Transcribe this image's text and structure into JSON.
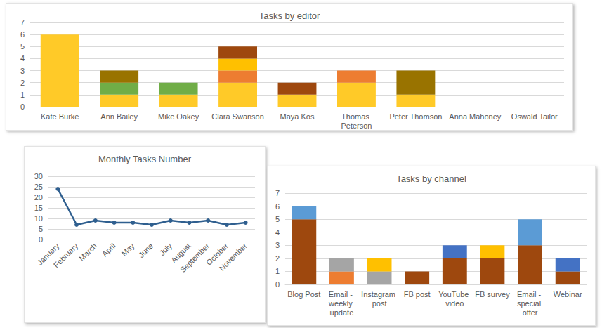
{
  "chart_data": [
    {
      "type": "bar",
      "title": "Tasks by editor",
      "categories": [
        "Kate Burke",
        "Ann Bailey",
        "Mike Oakey",
        "Clara Swanson",
        "Maya Kos",
        "Thomas Peterson",
        "Peter Thomson",
        "Anna Mahoney",
        "Oswald Tailor"
      ],
      "series": [
        {
          "color": "#FFCA28",
          "values": [
            6,
            1,
            1,
            2,
            1,
            2,
            1,
            0,
            0
          ]
        },
        {
          "color": "#70AD47",
          "values": [
            0,
            1,
            1,
            0,
            0,
            0,
            0,
            0,
            0
          ]
        },
        {
          "color": "#ED7D31",
          "values": [
            0,
            0,
            0,
            1,
            0,
            1,
            0,
            0,
            0
          ]
        },
        {
          "color": "#FFC000",
          "values": [
            0,
            0,
            0,
            1,
            0,
            0,
            0,
            0,
            0
          ]
        },
        {
          "color": "#9E480E",
          "values": [
            0,
            0,
            0,
            1,
            1,
            0,
            0,
            0,
            0
          ]
        },
        {
          "color": "#997300",
          "values": [
            0,
            1,
            0,
            0,
            0,
            0,
            2,
            0,
            0
          ]
        }
      ],
      "stacked": true,
      "ylim": [
        0,
        7
      ],
      "yticks": [
        0,
        1,
        2,
        3,
        4,
        5,
        6,
        7
      ],
      "grid": true
    },
    {
      "type": "line",
      "title": "Monthly Tasks Number",
      "categories": [
        "January",
        "February",
        "March",
        "April",
        "May",
        "June",
        "July",
        "August",
        "September",
        "October",
        "November"
      ],
      "values": [
        24,
        7,
        9,
        8,
        8,
        7,
        9,
        8,
        9,
        7,
        8
      ],
      "color": "#2F5F8F",
      "marker": "circle",
      "ylim": [
        0,
        30
      ],
      "yticks": [
        0,
        5,
        10,
        15,
        20,
        25,
        30
      ],
      "grid": true
    },
    {
      "type": "bar",
      "title": "Tasks by channel",
      "categories": [
        "Blog Post",
        "Email - weekly update",
        "Instagram post",
        "FB post",
        "YouTube video",
        "FB survey",
        "Email - special offer",
        "Webinar"
      ],
      "series": [
        {
          "color": "#9E480E",
          "values": [
            5,
            0,
            0,
            1,
            2,
            2,
            3,
            1
          ]
        },
        {
          "color": "#ED7D31",
          "values": [
            0,
            1,
            0,
            0,
            0,
            0,
            0,
            0
          ]
        },
        {
          "color": "#A5A5A5",
          "values": [
            0,
            1,
            1,
            0,
            0,
            0,
            0,
            0
          ]
        },
        {
          "color": "#FFC000",
          "values": [
            0,
            0,
            1,
            0,
            0,
            1,
            0,
            0
          ]
        },
        {
          "color": "#5B9BD5",
          "values": [
            1,
            0,
            0,
            0,
            0,
            0,
            2,
            0
          ]
        },
        {
          "color": "#4472C4",
          "values": [
            0,
            0,
            0,
            0,
            1,
            0,
            0,
            1
          ]
        }
      ],
      "stacked": true,
      "ylim": [
        0,
        7
      ],
      "yticks": [
        0,
        1,
        2,
        3,
        4,
        5,
        6,
        7
      ],
      "grid": true
    }
  ]
}
